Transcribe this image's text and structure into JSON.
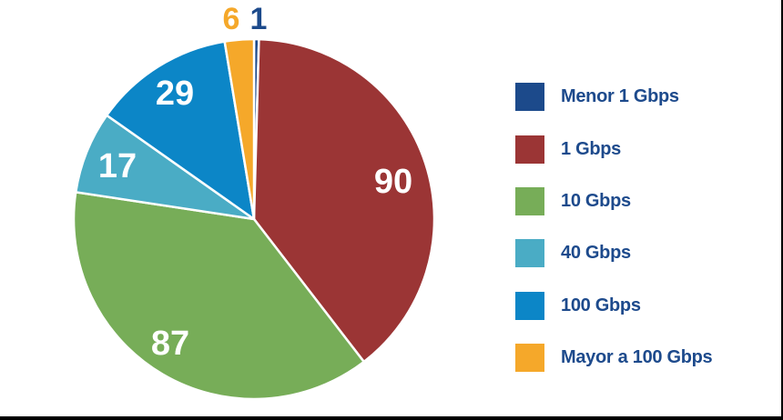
{
  "chart_data": {
    "type": "pie",
    "title": "",
    "categories": [
      "Menor 1 Gbps",
      "1 Gbps",
      "10 Gbps",
      "40 Gbps",
      "100 Gbps",
      "Mayor a 100 Gbps"
    ],
    "values": [
      1,
      90,
      87,
      17,
      29,
      6
    ],
    "colors": [
      "#1c4a8b",
      "#9b3535",
      "#77ad58",
      "#4aacc5",
      "#0c86c7",
      "#f5a82a"
    ],
    "data_labels": [
      "1",
      "90",
      "87",
      "17",
      "29",
      "6"
    ],
    "legend_position": "right",
    "start_angle_deg": 0,
    "direction": "clockwise"
  },
  "legend": {
    "items": [
      {
        "label": "Menor 1 Gbps",
        "color": "#1c4a8b"
      },
      {
        "label": "1 Gbps",
        "color": "#9b3535"
      },
      {
        "label": "10 Gbps",
        "color": "#77ad58"
      },
      {
        "label": "40 Gbps",
        "color": "#4aacc5"
      },
      {
        "label": "100 Gbps",
        "color": "#0c86c7"
      },
      {
        "label": "Mayor a 100 Gbps",
        "color": "#f5a82a"
      }
    ]
  }
}
